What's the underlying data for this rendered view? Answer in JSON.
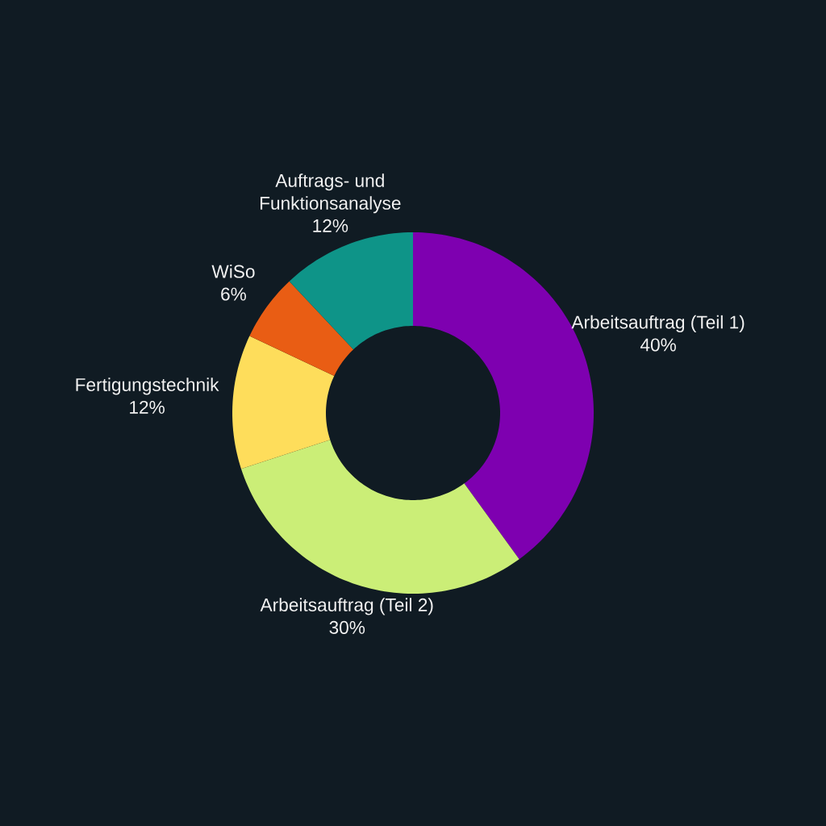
{
  "chart_data": {
    "type": "donut",
    "categories": [
      "Arbeitsauftrag (Teil 1)",
      "Arbeitsauftrag (Teil 2)",
      "Fertigungstechnik",
      "WiSo",
      "Auftrags- und Funktionsanalyse"
    ],
    "values": [
      40,
      30,
      12,
      6,
      12
    ],
    "value_labels": [
      "40%",
      "30%",
      "12%",
      "6%",
      "12%"
    ],
    "colors": [
      "#7e00b0",
      "#cbee77",
      "#fedd5b",
      "#e95d14",
      "#0e9488"
    ]
  }
}
